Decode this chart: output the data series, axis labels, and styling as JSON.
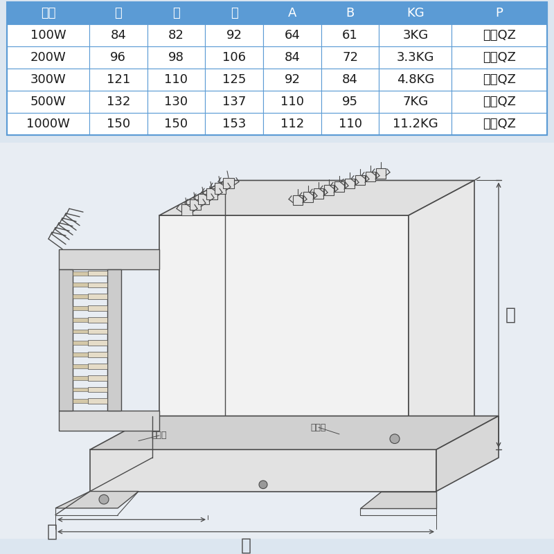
{
  "table_header": [
    "型号",
    "长",
    "宽",
    "高",
    "A",
    "B",
    "KG",
    "P"
  ],
  "table_rows": [
    [
      "100W",
      "84",
      "82",
      "92",
      "64",
      "61",
      "3KG",
      "铜线QZ"
    ],
    [
      "200W",
      "96",
      "98",
      "106",
      "84",
      "72",
      "3.3KG",
      "铜线QZ"
    ],
    [
      "300W",
      "121",
      "110",
      "125",
      "92",
      "84",
      "4.8KG",
      "铜线QZ"
    ],
    [
      "500W",
      "132",
      "130",
      "137",
      "110",
      "95",
      "7KG",
      "铜线QZ"
    ],
    [
      "1000W",
      "150",
      "150",
      "153",
      "112",
      "110",
      "11.2KG",
      "铜线QZ"
    ]
  ],
  "header_bg": "#5b9bd5",
  "header_text_color": "#ffffff",
  "row_bg": "#ffffff",
  "table_text_color": "#1a1a1a",
  "border_color": "#5b9bd5",
  "page_bg": "#dce6f0",
  "drawing_bg": "#e8edf3",
  "lc": "#4a4a4a",
  "label_gao": "高",
  "label_kuan": "宽",
  "label_chang": "长",
  "label_azk": "安装孔"
}
